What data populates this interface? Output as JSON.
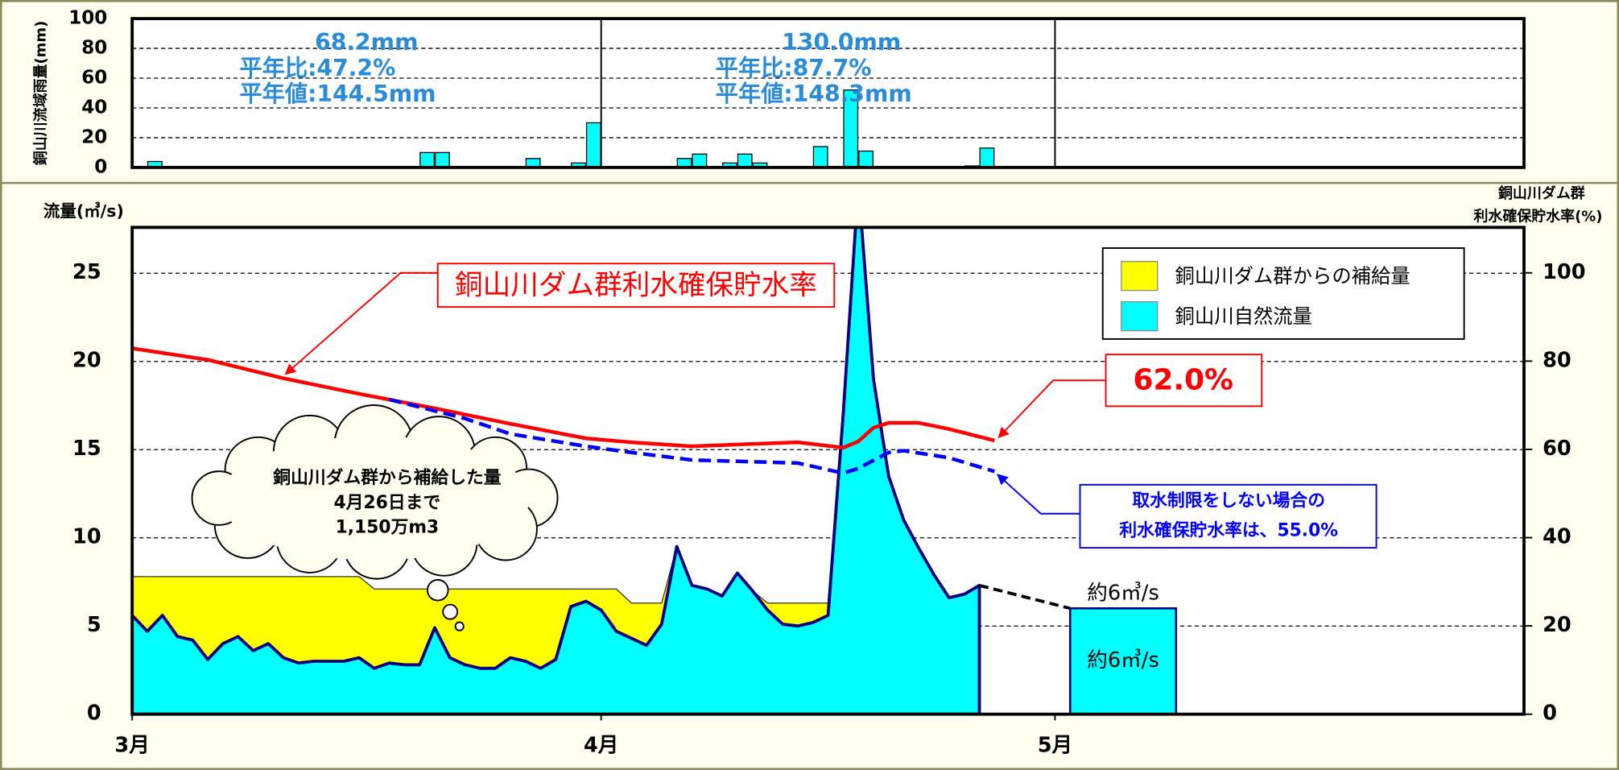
{
  "chart_data": [
    {
      "type": "bar",
      "y_label": "銅山川流域雨量(mm)",
      "x": [
        1,
        19,
        20,
        26,
        29,
        30,
        36,
        37,
        39,
        40,
        41,
        45,
        47,
        48,
        55,
        56
      ],
      "values": [
        4,
        10,
        10,
        6,
        3,
        30,
        6,
        9,
        3,
        9,
        3,
        14,
        52,
        11,
        1,
        13
      ],
      "color": "#00ffff",
      "xlim": [
        0,
        92
      ],
      "ylim": [
        0,
        100
      ],
      "yticks": [
        0,
        20,
        40,
        60,
        80,
        100
      ],
      "grid": true,
      "annotation_color": "#2a8bd8",
      "annotations": [
        [
          "68.2mm",
          "平年比:47.2%",
          "平年値:144.5mm"
        ],
        [
          "130.0mm",
          "平年比:87.7%",
          "平年値:148.3mm"
        ]
      ]
    },
    {
      "type": "combo",
      "y_label": "流量(㎥/s)",
      "y2_label": [
        "銅山川ダム群",
        "利水確保貯水率(%)"
      ],
      "x": [
        0,
        1,
        2,
        3,
        4,
        5,
        6,
        7,
        8,
        9,
        10,
        11,
        12,
        13,
        14,
        15,
        16,
        17,
        18,
        19,
        20,
        21,
        22,
        23,
        24,
        25,
        26,
        27,
        28,
        29,
        30,
        31,
        32,
        33,
        34,
        35,
        36,
        37,
        38,
        39,
        40,
        41,
        42,
        43,
        44,
        45,
        46,
        47,
        48,
        49,
        50,
        51,
        52,
        53,
        54,
        55,
        56
      ],
      "xlim": [
        0,
        92
      ],
      "xticks": [
        {
          "value": 0,
          "label": "3月"
        },
        {
          "value": 31,
          "label": "4月"
        },
        {
          "value": 61,
          "label": "5月"
        }
      ],
      "ylim": [
        0,
        27.6
      ],
      "yticks": [
        0,
        5,
        10,
        15,
        20,
        25
      ],
      "y2lim": [
        0,
        110.3
      ],
      "y2ticks": [
        0,
        20,
        40,
        60,
        80,
        100
      ],
      "grid": true,
      "legend": "top-right",
      "series": [
        {
          "name": "銅山川ダム群からの補給量",
          "type": "area",
          "stacked": true,
          "color": "#ffff00",
          "values": [
            2.2,
            3.1,
            2.2,
            3.4,
            3.6,
            4.7,
            3.8,
            3.4,
            4.2,
            3.8,
            4.6,
            4.9,
            4.8,
            4.8,
            4.8,
            4.6,
            4.5,
            4.2,
            4.3,
            4.3,
            2.2,
            3.9,
            4.3,
            4.5,
            4.5,
            3.9,
            4.1,
            4.5,
            4.0,
            1.0,
            0.7,
            1.2,
            2.4,
            2.0,
            2.4,
            1.2,
            0,
            0,
            0,
            0,
            0,
            0,
            0.4,
            1.2,
            1.3,
            1.1,
            0.7,
            0,
            0,
            0,
            0,
            0,
            0,
            0,
            0,
            0,
            0
          ]
        },
        {
          "name": "銅山川自然流量",
          "type": "area",
          "color": "#00ffff",
          "values": [
            5.6,
            4.7,
            5.6,
            4.4,
            4.2,
            3.1,
            4.0,
            4.4,
            3.6,
            4.0,
            3.2,
            2.9,
            3.0,
            3.0,
            3.0,
            3.2,
            2.6,
            2.9,
            2.8,
            2.8,
            4.9,
            3.2,
            2.8,
            2.6,
            2.6,
            3.2,
            3.0,
            2.6,
            3.1,
            6.1,
            6.4,
            5.9,
            4.7,
            4.3,
            3.9,
            5.1,
            9.5,
            7.3,
            7.1,
            6.7,
            8.0,
            7.0,
            5.9,
            5.1,
            5.0,
            5.2,
            5.6,
            17,
            30,
            19,
            13.5,
            11,
            9.4,
            7.9,
            6.6,
            6.8,
            7.3
          ]
        },
        {
          "name": "銅山川ダム群利水確保貯水率",
          "type": "line",
          "axis": "y2",
          "color": "#ff0000",
          "x": [
            0,
            5,
            10,
            15,
            20,
            25,
            30,
            33,
            37,
            40,
            44,
            47,
            48,
            49,
            50,
            52,
            54,
            57
          ],
          "values": [
            82.9,
            80.3,
            76.1,
            72.6,
            69.3,
            65.8,
            62.5,
            61.6,
            60.7,
            61.1,
            61.6,
            60.4,
            61.8,
            64.9,
            66.0,
            66.0,
            64.6,
            62.0
          ],
          "value_labels": [
            null,
            null,
            null,
            null,
            null,
            null,
            null,
            null,
            null,
            null,
            null,
            null,
            null,
            null,
            null,
            null,
            null,
            "62.0%"
          ]
        },
        {
          "type": "line",
          "axis": "y2",
          "color": "#0000ff",
          "dashed": true,
          "x": [
            17,
            22,
            25,
            30,
            33,
            37,
            44,
            47,
            48,
            50,
            51,
            54,
            57
          ],
          "values": [
            71.3,
            67,
            63.5,
            60.7,
            59.3,
            57.6,
            56.9,
            54.6,
            55.7,
            59.3,
            59.7,
            58.1,
            55.0
          ]
        }
      ],
      "projection": {
        "x": [
          62,
          69
        ],
        "value": 6,
        "color": "#00ffff",
        "labels": [
          "約6㎥/s",
          "約6㎥/s"
        ]
      },
      "notes": [
        [
          "銅山川ダム群から補給した量",
          "4月26日まで",
          "1,150万m3"
        ],
        [
          "取水制限をしない場合の",
          "利水確保貯水率は、55.0%"
        ]
      ]
    }
  ]
}
